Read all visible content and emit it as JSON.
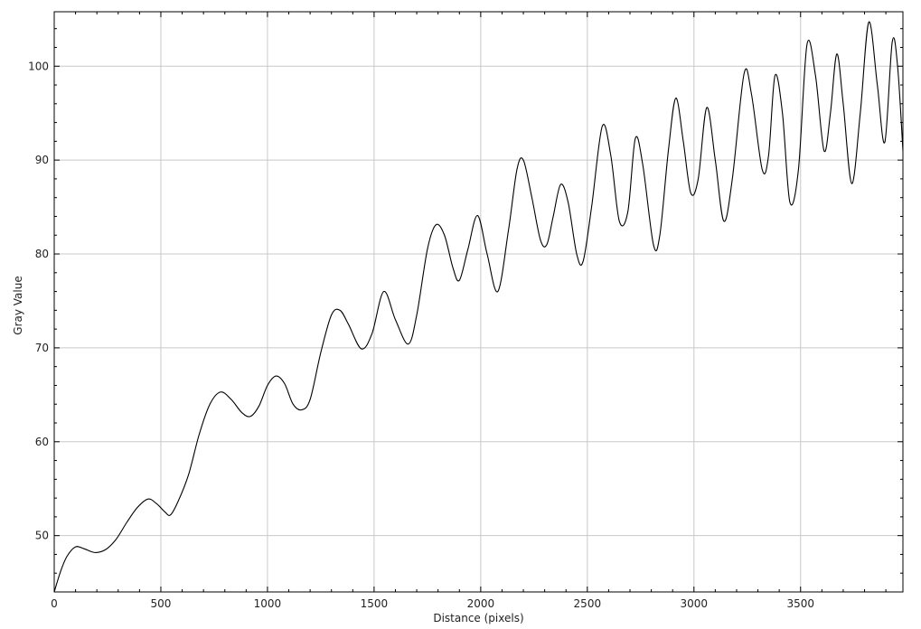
{
  "chart_data": {
    "type": "line",
    "xlabel": "Distance (pixels)",
    "ylabel": "Gray Value",
    "xlim": [
      0,
      3980
    ],
    "ylim": [
      44,
      105.8
    ],
    "x_ticks": [
      0,
      500,
      1000,
      1500,
      2000,
      2500,
      3000,
      3500
    ],
    "y_ticks": [
      50,
      60,
      70,
      80,
      90,
      100
    ],
    "grid": true,
    "legend": "none",
    "line_color": "#000000",
    "series": [
      {
        "x": [
          0,
          30,
          60,
          100,
          140,
          190,
          240,
          290,
          340,
          390,
          440,
          480,
          520,
          545,
          580,
          630,
          680,
          730,
          780,
          830,
          880,
          920,
          960,
          1000,
          1040,
          1080,
          1120,
          1160,
          1200,
          1250,
          1300,
          1340,
          1380,
          1440,
          1490,
          1545,
          1600,
          1660,
          1700,
          1750,
          1790,
          1830,
          1870,
          1900,
          1940,
          1985,
          2030,
          2080,
          2130,
          2170,
          2200,
          2240,
          2280,
          2310,
          2340,
          2375,
          2410,
          2450,
          2480,
          2520,
          2570,
          2610,
          2650,
          2690,
          2725,
          2760,
          2810,
          2840,
          2880,
          2915,
          2950,
          2985,
          3020,
          3060,
          3100,
          3140,
          3180,
          3235,
          3270,
          3320,
          3350,
          3380,
          3415,
          3450,
          3490,
          3530,
          3570,
          3610,
          3640,
          3670,
          3700,
          3740,
          3780,
          3820,
          3860,
          3895,
          3930,
          3955,
          3980
        ],
        "y": [
          44,
          46.2,
          47.8,
          48.8,
          48.6,
          48.2,
          48.5,
          49.6,
          51.4,
          53.0,
          53.9,
          53.4,
          52.5,
          52.2,
          53.6,
          56.5,
          60.8,
          64.0,
          65.3,
          64.5,
          63.1,
          62.7,
          63.8,
          66.0,
          67.0,
          66.2,
          64.0,
          63.4,
          64.5,
          69.5,
          73.5,
          74.0,
          72.5,
          69.9,
          71.5,
          76.0,
          73.0,
          70.4,
          73.5,
          80.5,
          83.1,
          82.0,
          78.5,
          77.2,
          80.5,
          84.1,
          80.0,
          76.0,
          82.5,
          89.0,
          90.0,
          86.0,
          81.5,
          81.0,
          84.0,
          87.4,
          85.5,
          80.0,
          79.2,
          85.0,
          93.6,
          90.5,
          83.5,
          84.5,
          92.3,
          89.5,
          81.0,
          82.0,
          91.0,
          96.6,
          92.0,
          86.5,
          88.0,
          95.6,
          90.0,
          83.5,
          88.0,
          99.2,
          97.0,
          89.0,
          90.5,
          99.0,
          95.0,
          85.5,
          89.0,
          102.3,
          99.0,
          91.0,
          95.0,
          101.3,
          96.0,
          87.5,
          95.0,
          104.7,
          98.0,
          91.9,
          102.6,
          100.0,
          91.0
        ]
      }
    ]
  }
}
